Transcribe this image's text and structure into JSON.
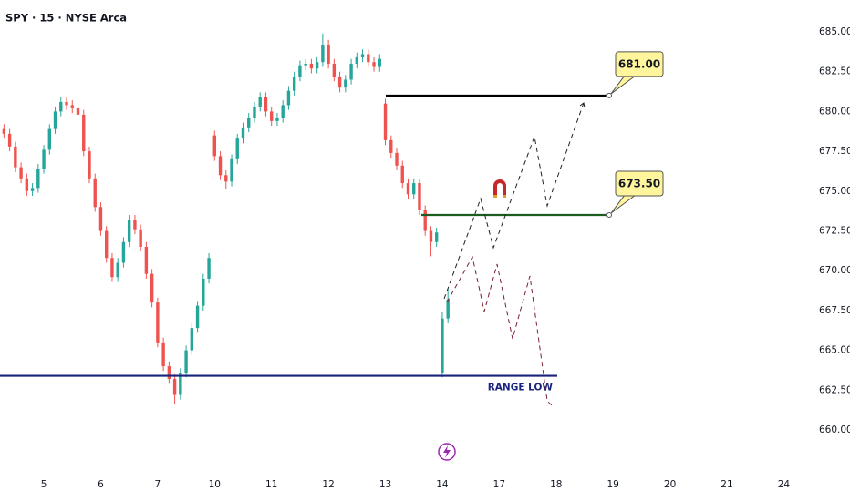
{
  "chart_data": {
    "type": "candlestick",
    "title": "SPY · 15 · NYSE Arca",
    "x": [
      -7,
      -6,
      -5,
      -4,
      -3,
      -2,
      -1,
      0,
      1,
      2,
      3,
      4,
      5,
      6,
      7,
      8,
      9,
      10,
      11,
      12,
      13,
      14,
      15,
      16,
      17,
      18,
      19,
      20,
      21,
      22,
      23,
      24,
      25,
      26,
      27,
      28,
      29,
      30,
      31,
      32,
      33,
      34,
      35,
      36,
      37,
      38,
      39,
      40,
      41,
      42,
      43,
      44,
      45,
      46,
      47,
      48,
      49,
      50,
      51,
      52,
      53,
      54,
      55,
      56,
      57,
      58,
      59,
      60,
      61,
      62,
      63,
      64,
      65,
      66,
      67,
      68,
      69,
      70,
      71
    ],
    "open": [
      678.9,
      678.6,
      677.8,
      676.5,
      675.8,
      675.0,
      675.2,
      676.4,
      677.6,
      678.9,
      680.0,
      680.6,
      680.4,
      680.2,
      679.8,
      677.5,
      675.8,
      674.0,
      672.5,
      670.8,
      669.6,
      670.5,
      671.8,
      673.2,
      672.6,
      671.5,
      669.8,
      668.0,
      665.5,
      664.0,
      663.2,
      662.2,
      663.6,
      665.0,
      666.4,
      667.8,
      669.5,
      678.5,
      677.2,
      676.0,
      675.6,
      677.0,
      678.3,
      679.0,
      679.6,
      680.3,
      680.9,
      680.0,
      679.4,
      679.6,
      680.4,
      681.3,
      682.2,
      682.9,
      683.0,
      682.7,
      683.1,
      684.2,
      683.0,
      682.2,
      681.5,
      682.0,
      683.0,
      683.4,
      683.6,
      683.1,
      682.8,
      680.5,
      678.2,
      677.4,
      676.6,
      675.5,
      674.8,
      675.5,
      673.8,
      672.5,
      671.8,
      663.6,
      667.0
    ],
    "high": [
      679.2,
      678.9,
      678.1,
      676.8,
      676.1,
      675.5,
      676.7,
      677.9,
      679.2,
      680.3,
      680.9,
      680.9,
      680.7,
      680.5,
      680.1,
      677.8,
      676.1,
      674.3,
      672.8,
      671.1,
      670.8,
      672.1,
      673.5,
      673.5,
      672.9,
      671.8,
      670.1,
      668.3,
      665.8,
      664.3,
      663.5,
      663.9,
      665.3,
      666.7,
      668.1,
      669.8,
      671.1,
      678.8,
      677.5,
      676.3,
      677.3,
      678.6,
      679.3,
      679.9,
      680.6,
      681.2,
      681.2,
      680.3,
      679.9,
      680.7,
      681.6,
      682.5,
      683.2,
      683.3,
      683.3,
      683.4,
      684.9,
      684.5,
      683.3,
      682.5,
      682.3,
      683.3,
      683.7,
      683.9,
      683.9,
      683.4,
      683.6,
      680.8,
      678.5,
      677.7,
      676.9,
      675.8,
      675.8,
      675.8,
      674.1,
      672.8,
      672.7,
      667.4,
      668.9
    ],
    "low": [
      678.3,
      677.5,
      676.2,
      675.5,
      674.7,
      674.7,
      674.9,
      676.1,
      677.3,
      678.6,
      679.7,
      680.1,
      679.9,
      679.5,
      677.2,
      675.5,
      673.7,
      672.2,
      670.5,
      669.3,
      669.3,
      670.2,
      671.5,
      672.3,
      671.2,
      669.5,
      667.7,
      665.2,
      663.7,
      662.9,
      661.6,
      661.9,
      663.3,
      664.7,
      666.1,
      667.5,
      669.2,
      676.9,
      675.7,
      675.1,
      675.3,
      676.7,
      678.0,
      678.7,
      679.3,
      680.0,
      679.7,
      679.1,
      679.1,
      679.3,
      680.1,
      681.0,
      681.9,
      682.6,
      682.4,
      682.4,
      682.8,
      682.7,
      681.9,
      681.2,
      681.2,
      681.7,
      682.7,
      683.1,
      682.8,
      682.5,
      682.5,
      677.9,
      677.1,
      676.3,
      675.2,
      674.5,
      674.5,
      673.5,
      672.2,
      670.9,
      671.5,
      663.3,
      666.7
    ],
    "close": [
      678.6,
      677.8,
      676.5,
      675.8,
      675.0,
      675.2,
      676.4,
      677.6,
      678.9,
      680.0,
      680.6,
      680.4,
      680.2,
      679.8,
      677.5,
      675.8,
      674.0,
      672.5,
      670.8,
      669.6,
      670.5,
      671.8,
      673.2,
      672.6,
      671.5,
      669.8,
      668.0,
      665.5,
      664.0,
      663.2,
      662.2,
      663.6,
      665.0,
      666.4,
      667.8,
      669.5,
      670.8,
      677.2,
      676.0,
      675.6,
      677.0,
      678.3,
      679.0,
      679.6,
      680.3,
      680.9,
      680.0,
      679.4,
      679.6,
      680.4,
      681.3,
      682.2,
      682.9,
      683.0,
      682.7,
      683.1,
      684.2,
      683.0,
      682.2,
      681.5,
      682.0,
      683.0,
      683.4,
      683.6,
      683.1,
      682.8,
      683.3,
      678.2,
      677.4,
      676.6,
      675.5,
      674.8,
      675.5,
      673.8,
      672.5,
      671.8,
      672.4,
      667.0,
      668.2
    ],
    "up_color": "#26a69a",
    "down_color": "#ef5350",
    "xlim": [
      -7.7,
      133.3
    ],
    "xticks": [
      {
        "value": 0,
        "label": "5"
      },
      {
        "value": 10,
        "label": "6"
      },
      {
        "value": 20,
        "label": "7"
      },
      {
        "value": 30,
        "label": "10"
      },
      {
        "value": 40,
        "label": "11"
      },
      {
        "value": 50,
        "label": "12"
      },
      {
        "value": 60,
        "label": "13"
      },
      {
        "value": 70,
        "label": "14"
      },
      {
        "value": 80,
        "label": "17"
      },
      {
        "value": 90,
        "label": "18"
      },
      {
        "value": 100,
        "label": "19"
      },
      {
        "value": 110,
        "label": "20"
      },
      {
        "value": 120,
        "label": "21"
      },
      {
        "value": 130,
        "label": "24"
      }
    ],
    "ylim": [
      658.4,
      686.4
    ],
    "yticks": [
      {
        "value": 660,
        "label": "660.00"
      },
      {
        "value": 662.5,
        "label": "662.50"
      },
      {
        "value": 665,
        "label": "665.00"
      },
      {
        "value": 667.5,
        "label": "667.50"
      },
      {
        "value": 670,
        "label": "670.00"
      },
      {
        "value": 672.5,
        "label": "672.50"
      },
      {
        "value": 675,
        "label": "675.00"
      },
      {
        "value": 677.5,
        "label": "677.50"
      },
      {
        "value": 680,
        "label": "680.00"
      },
      {
        "value": 682.5,
        "label": "682.50"
      },
      {
        "value": 685,
        "label": "685.00"
      }
    ],
    "levels": [
      {
        "value": 681,
        "label": "681.00",
        "color": "#000000"
      },
      {
        "value": 673.5,
        "label": "673.50",
        "color": "#1b5e20"
      },
      {
        "value": 663.4,
        "label": "RANGE LOW",
        "color": "#1a237e"
      }
    ]
  }
}
